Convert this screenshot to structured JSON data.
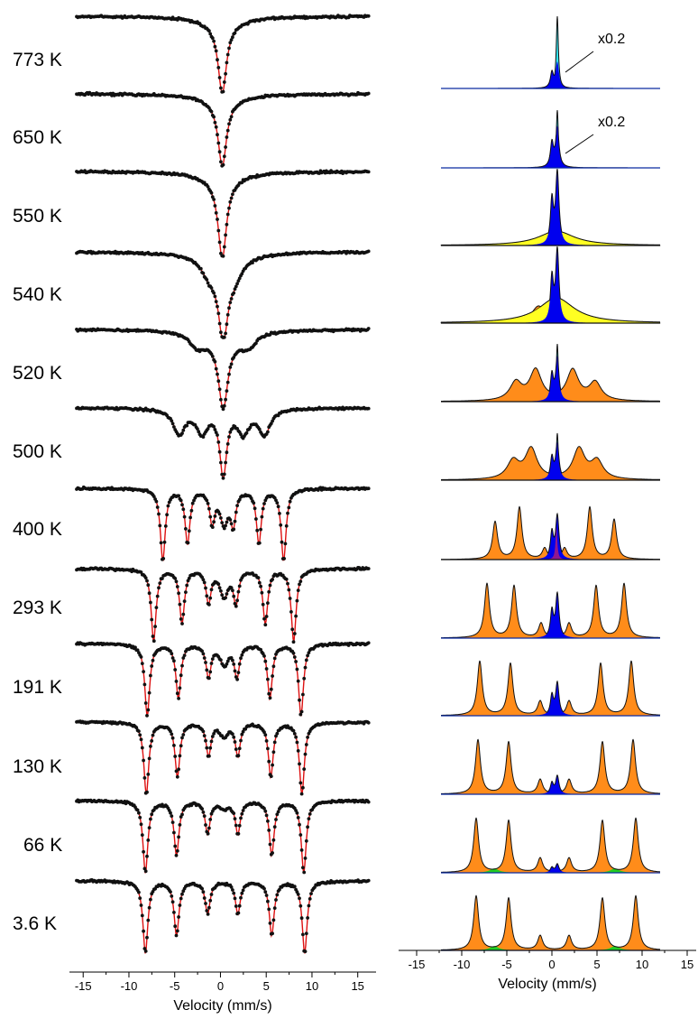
{
  "chart_data": [
    {
      "type": "scatter",
      "panel": "left",
      "xlabel": "Velocity (mm/s)",
      "xlim": [
        -16.5,
        17
      ],
      "xticks": [
        -15,
        -10,
        -5,
        0,
        5,
        10,
        15
      ],
      "spectra_stacked": "vertical, highest temperature at top",
      "fit_line_color": "#dd1111",
      "point_color": "#111111",
      "temperatures": [
        "773",
        "650",
        "550",
        "540",
        "520",
        "500",
        "400",
        "293",
        "191",
        "130",
        "66",
        "3.6"
      ],
      "temperature_unit": "K",
      "sextet_lines_by_temperature": [
        {
          "T": "773",
          "lines": []
        },
        {
          "T": "650",
          "lines": []
        },
        {
          "T": "550",
          "lines": []
        },
        {
          "T": "540",
          "lines": [
            -1.2,
            1.6
          ]
        },
        {
          "T": "520",
          "lines": [
            -2.5,
            3.0
          ]
        },
        {
          "T": "500",
          "lines": [
            -4.5,
            -2.0,
            2.5,
            4.8
          ]
        },
        {
          "T": "400",
          "lines": [
            -6.3,
            -3.6,
            -0.9,
            1.4,
            4.2,
            6.9
          ]
        },
        {
          "T": "293",
          "lines": [
            -7.3,
            -4.2,
            -1.3,
            1.7,
            4.9,
            8.0
          ]
        },
        {
          "T": "191",
          "lines": [
            -8.0,
            -4.6,
            -1.3,
            1.8,
            5.4,
            8.8
          ]
        },
        {
          "T": "130",
          "lines": [
            -8.1,
            -4.7,
            -1.3,
            1.9,
            5.5,
            8.9
          ]
        },
        {
          "T": "66",
          "lines": [
            -8.2,
            -4.8,
            -1.4,
            1.9,
            5.6,
            9.1
          ]
        },
        {
          "T": "3.6",
          "lines": [
            -8.2,
            -4.8,
            -1.4,
            1.9,
            5.6,
            9.2
          ]
        }
      ]
    },
    {
      "type": "area",
      "panel": "right",
      "xlabel": "Velocity (mm/s)",
      "xlim": [
        -17,
        16
      ],
      "xticks": [
        -15,
        -10,
        -5,
        0,
        5,
        10,
        15
      ],
      "components": [
        {
          "name": "sextet",
          "color": "#ff8c1a"
        },
        {
          "name": "central-doublet",
          "color": "#0000ee"
        },
        {
          "name": "singlet",
          "color": "#33e5f0"
        },
        {
          "name": "broad-component",
          "color": "#ffff22"
        },
        {
          "name": "minor-sextet",
          "color": "#22cc22"
        },
        {
          "name": "minor-singlet",
          "color": "#cc2266"
        }
      ],
      "annotations": [
        {
          "text": "x0.2",
          "row": "773"
        },
        {
          "text": "x0.2",
          "row": "650"
        }
      ],
      "rows": [
        {
          "T": "773",
          "sextet_lines": [],
          "doublet_peak": 0.35,
          "singlet_peak": 1.0
        },
        {
          "T": "650",
          "sextet_lines": [],
          "doublet_peak": 0.55,
          "singlet_peak": 0.8
        },
        {
          "T": "550",
          "sextet_lines": [],
          "doublet_peak": 1.0,
          "broad": 0.2
        },
        {
          "T": "540",
          "sextet_lines": [
            -1.5,
            1.5
          ],
          "doublet_peak": 1.0,
          "broad": 0.35
        },
        {
          "T": "520",
          "sextet_lines": [
            -4.0,
            -1.8,
            2.3,
            4.8
          ],
          "doublet_peak": 0.6,
          "singlet_peak": 0.8
        },
        {
          "T": "500",
          "sextet_lines": [
            -4.3,
            -2.3,
            3.0,
            5.0
          ],
          "doublet_peak": 0.5,
          "singlet_peak": 0.65
        },
        {
          "T": "400",
          "sextet_lines": [
            -6.3,
            -3.6,
            -0.8,
            1.4,
            4.2,
            6.9
          ],
          "doublet_peak": 0.6,
          "singlet_peak": 0.55
        },
        {
          "T": "293",
          "sextet_lines": [
            -7.2,
            -4.2,
            -1.2,
            1.9,
            4.9,
            8.0
          ],
          "doublet_peak": 0.6
        },
        {
          "T": "191",
          "sextet_lines": [
            -8.0,
            -4.6,
            -1.3,
            1.9,
            5.4,
            8.8
          ],
          "doublet_peak": 0.45
        },
        {
          "T": "130",
          "sextet_lines": [
            -8.2,
            -4.8,
            -1.3,
            1.9,
            5.6,
            9.0
          ],
          "doublet_peak": 0.25
        },
        {
          "T": "66",
          "sextet_lines": [
            -8.4,
            -4.8,
            -1.3,
            1.9,
            5.6,
            9.3
          ],
          "doublet_peak": 0.12
        },
        {
          "T": "3.6",
          "sextet_lines": [
            -8.4,
            -4.8,
            -1.3,
            1.9,
            5.6,
            9.3
          ],
          "doublet_peak": 0.0
        }
      ]
    }
  ]
}
